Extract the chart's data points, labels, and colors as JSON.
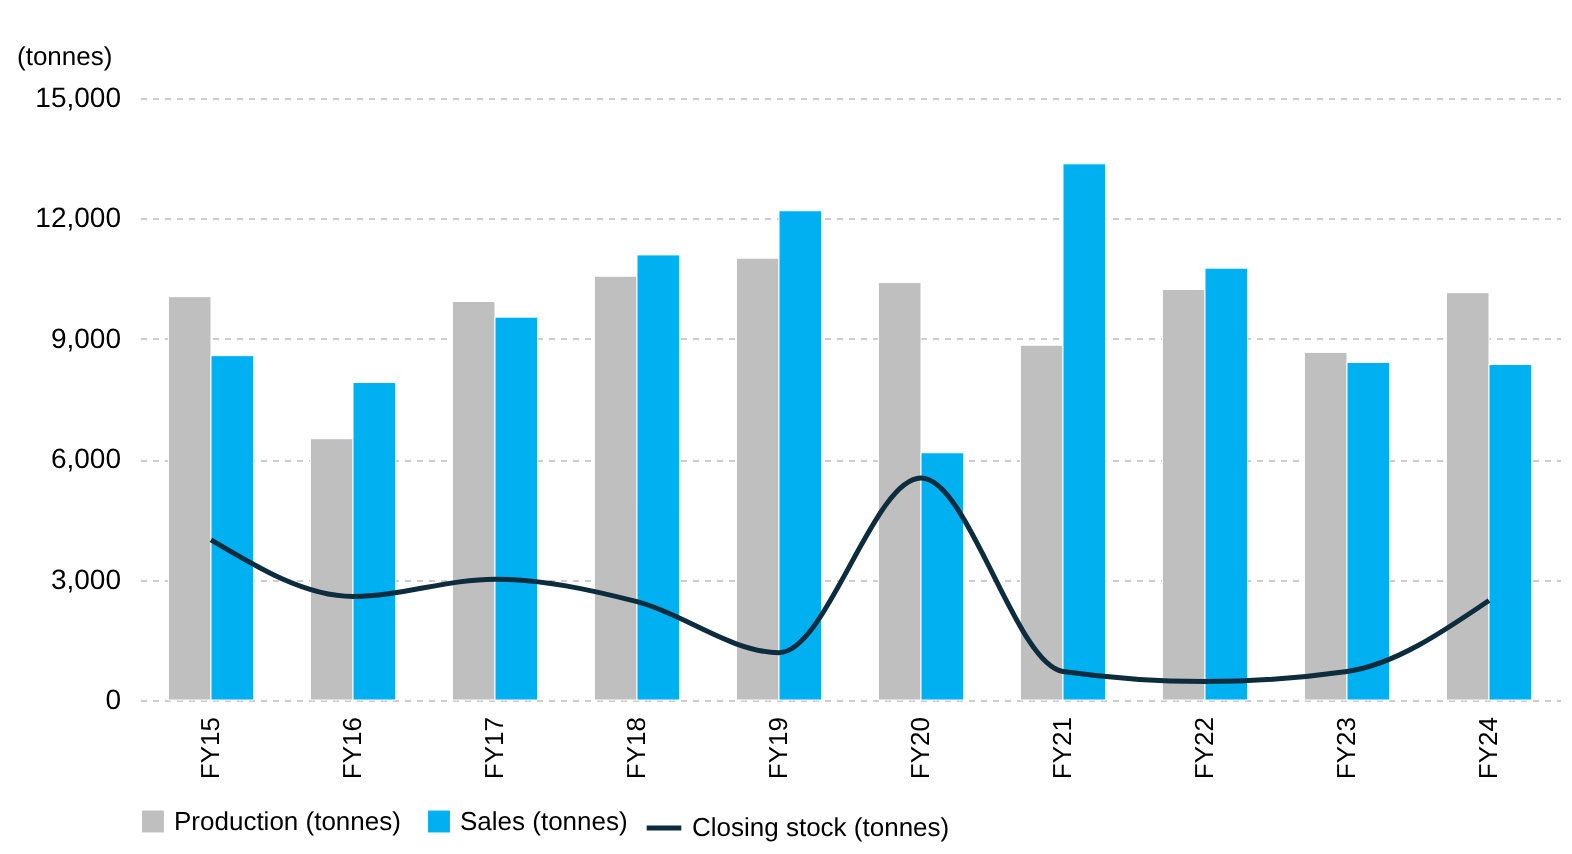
{
  "chart_data": {
    "type": "bar",
    "ylabel": "(tonnes)",
    "categories": [
      "FY15",
      "FY16",
      "FY17",
      "FY18",
      "FY19",
      "FY20",
      "FY21",
      "FY22",
      "FY23",
      "FY24"
    ],
    "series": [
      {
        "name": "Production (tonnes)",
        "color": "#bfbfbf",
        "values": [
          10050,
          6510,
          9930,
          10560,
          11010,
          10400,
          8840,
          10230,
          8660,
          10150
        ]
      },
      {
        "name": "Sales (tonnes)",
        "color": "#00b0f0",
        "values": [
          8580,
          7910,
          9540,
          11090,
          12190,
          6160,
          13360,
          10760,
          8410,
          8360
        ]
      },
      {
        "name": "Closing stock (tonnes)",
        "type": "line",
        "color": "#0d2d3e",
        "values": [
          3990,
          2580,
          3010,
          2450,
          1180,
          5530,
          710,
          460,
          710,
          2480
        ]
      }
    ],
    "ylim": [
      0,
      15000
    ],
    "yticks": [
      0,
      {
        "value": 3000,
        "label": "3,000"
      },
      {
        "value": 6000,
        "label": "6,000"
      },
      {
        "value": 9000,
        "label": "9,000"
      },
      {
        "value": 12000,
        "label": "12,000"
      },
      {
        "value": 15000,
        "label": "15,000"
      }
    ],
    "grid": "y",
    "legend": "bottom",
    "marker": "none",
    "line_style": "solid"
  }
}
